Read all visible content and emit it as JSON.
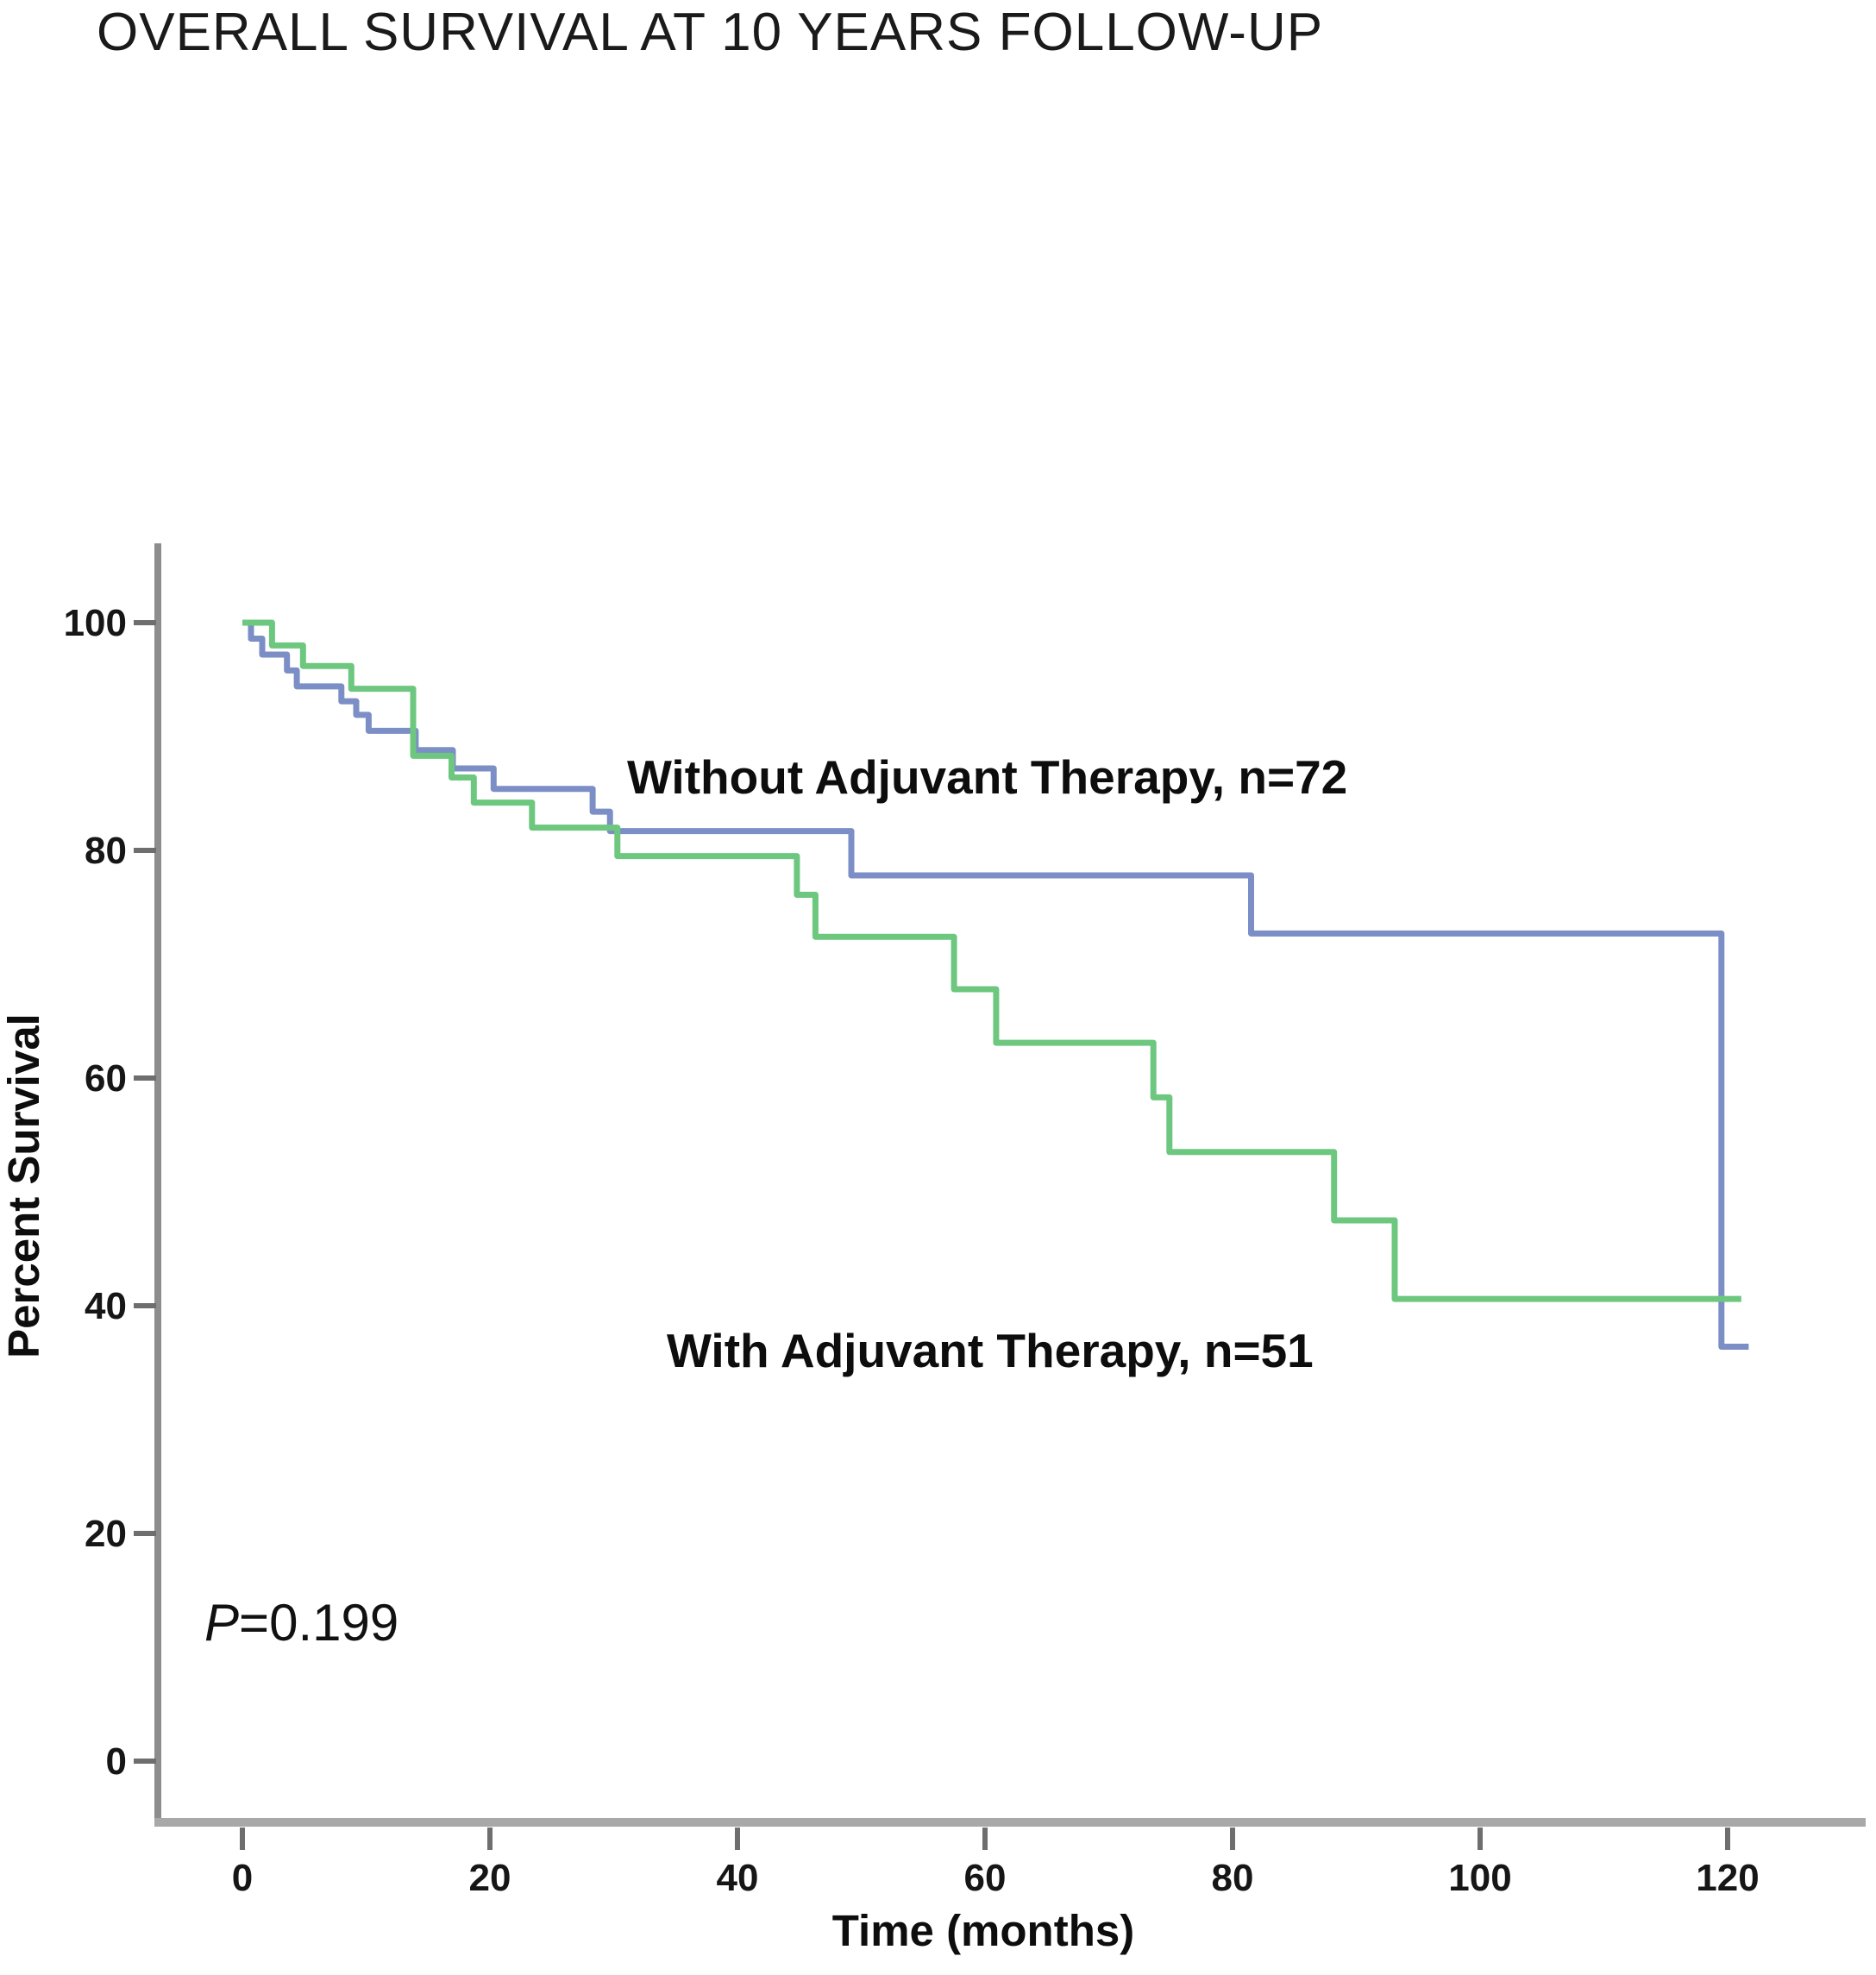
{
  "header": {
    "title": "OVERALL SURVIVAL AT 10 YEARS FOLLOW-UP"
  },
  "chart_data": {
    "type": "line",
    "variant": "kaplan_meier_step",
    "title": "OVERALL SURVIVAL AT 10 YEARS FOLLOW-UP",
    "xlabel": "Time (months)",
    "ylabel": "Percent Survival",
    "xlim": [
      -6.8,
      131
    ],
    "ylim": [
      -5.4,
      107
    ],
    "xticks": [
      0,
      20,
      40,
      60,
      80,
      100,
      120
    ],
    "yticks": [
      0,
      20,
      40,
      60,
      80,
      100
    ],
    "grid": false,
    "legend_position": "inline-labels",
    "annotation": {
      "p_symbol": "P",
      "p_rest": "=0.199"
    },
    "series": [
      {
        "name": "without-adjuvant-therapy",
        "label": "Without Adjuvant Therapy, n=72",
        "color": "#7b8ec6",
        "points": [
          [
            0,
            100
          ],
          [
            0.7,
            98.6
          ],
          [
            1.6,
            97.2
          ],
          [
            3.6,
            95.8
          ],
          [
            4.4,
            94.4
          ],
          [
            8,
            93.1
          ],
          [
            9.2,
            91.9
          ],
          [
            10.2,
            90.5
          ],
          [
            14,
            88.8
          ],
          [
            17,
            87.2
          ],
          [
            20.3,
            85.4
          ],
          [
            28.3,
            83.4
          ],
          [
            29.7,
            81.7
          ],
          [
            49.2,
            77.8
          ],
          [
            81.5,
            72.7
          ],
          [
            119.5,
            36.4
          ]
        ],
        "end_time": 121.7
      },
      {
        "name": "with-adjuvant-therapy",
        "label": "With Adjuvant Therapy, n=51",
        "color": "#6dc77e",
        "points": [
          [
            0,
            100
          ],
          [
            2.4,
            98
          ],
          [
            4.9,
            96.2
          ],
          [
            8.8,
            94.2
          ],
          [
            13.8,
            88.3
          ],
          [
            16.9,
            86.4
          ],
          [
            18.7,
            84.2
          ],
          [
            23.4,
            82
          ],
          [
            30.3,
            79.5
          ],
          [
            44.8,
            76.1
          ],
          [
            46.3,
            72.4
          ],
          [
            57.5,
            67.8
          ],
          [
            60.9,
            63.1
          ],
          [
            73.6,
            58.3
          ],
          [
            74.9,
            53.5
          ],
          [
            88.2,
            47.5
          ],
          [
            93.1,
            40.6
          ]
        ],
        "end_time": 121.1
      }
    ]
  }
}
